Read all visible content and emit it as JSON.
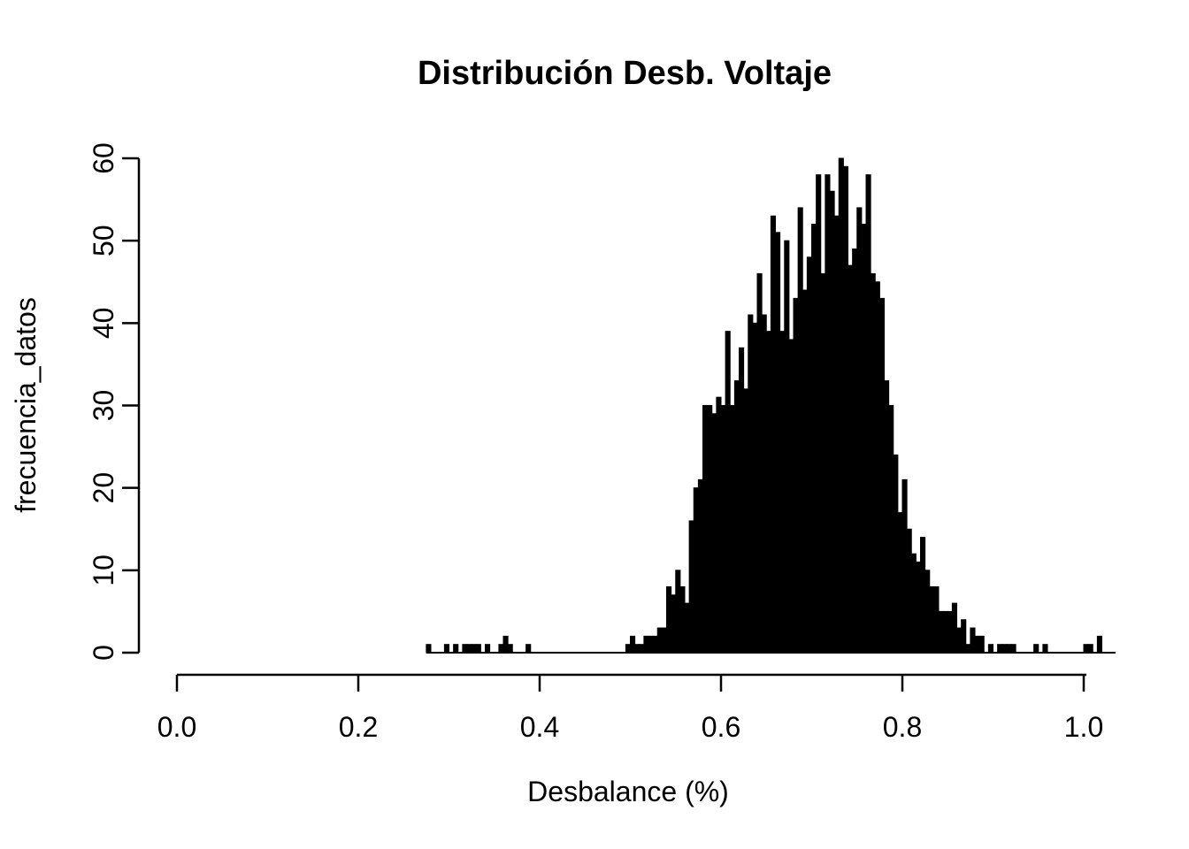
{
  "chart_data": {
    "type": "bar",
    "subtype": "histogram",
    "title": "Distribución Desb. Voltaje",
    "xlabel": "Desbalance (%)",
    "ylabel": "frecuencia_datos",
    "x_ticks": [
      0.0,
      0.2,
      0.4,
      0.6,
      0.8,
      1.0
    ],
    "y_ticks": [
      0,
      10,
      20,
      30,
      40,
      50,
      60
    ],
    "xlim": [
      0.0,
      1.04
    ],
    "ylim": [
      0,
      60
    ],
    "grid": false,
    "legend": null,
    "bar_color": "#000000",
    "axis_color": "#000000",
    "background_color": "#ffffff",
    "bin_start": 0.275,
    "bin_width": 0.005,
    "counts": [
      1,
      0,
      0,
      0,
      1,
      0,
      1,
      0,
      1,
      1,
      1,
      1,
      0,
      1,
      0,
      0,
      1,
      2,
      1,
      0,
      0,
      0,
      1,
      0,
      0,
      0,
      0,
      0,
      0,
      0,
      0,
      0,
      0,
      0,
      0,
      0,
      0,
      0,
      0,
      0,
      0,
      0,
      0,
      0,
      1,
      2,
      1,
      1,
      2,
      2,
      2,
      3,
      3,
      8,
      7,
      10,
      8,
      6,
      16,
      20,
      21,
      30,
      30,
      29,
      31,
      30,
      39,
      30,
      33,
      37,
      32,
      41,
      40,
      46,
      41,
      39,
      53,
      51,
      39,
      50,
      38,
      43,
      54,
      44,
      48,
      52,
      58,
      46,
      58,
      56,
      53,
      60,
      59,
      47,
      49,
      54,
      52,
      58,
      46,
      45,
      43,
      33,
      30,
      24,
      17,
      21,
      15,
      12,
      11,
      14,
      10,
      8,
      8,
      5,
      5,
      5,
      6,
      3,
      4,
      1,
      3,
      2,
      2,
      0,
      1,
      0,
      1,
      1,
      1,
      1,
      0,
      0,
      0,
      0,
      1,
      0,
      1,
      0,
      0,
      0,
      0,
      0,
      0,
      0,
      0,
      1,
      1,
      0,
      2,
      0,
      0,
      0
    ]
  }
}
